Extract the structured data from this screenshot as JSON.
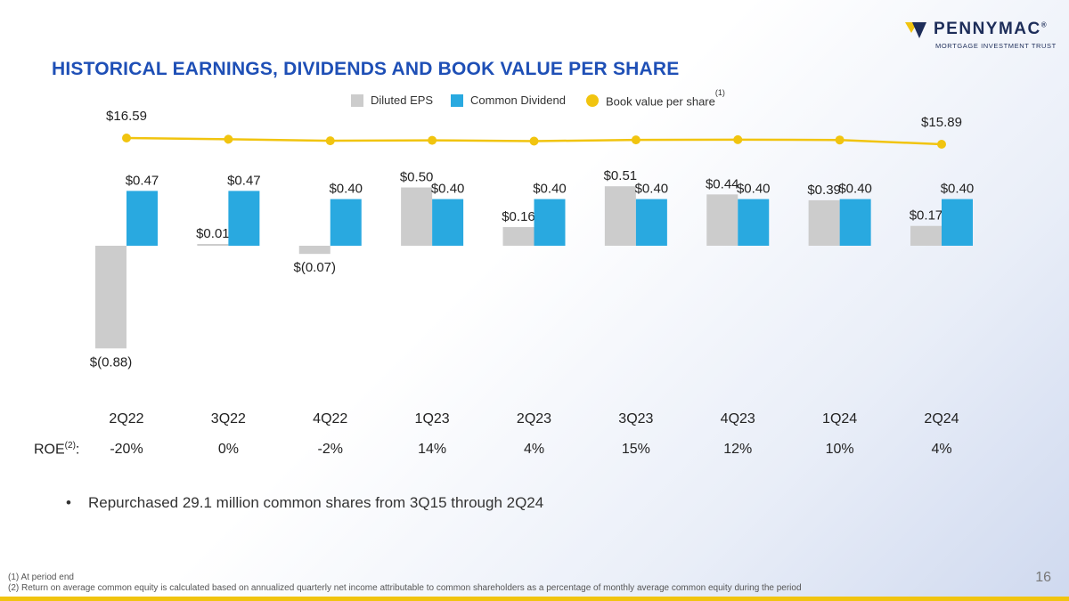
{
  "logo": {
    "name": "PENNYMAC",
    "mark_suffix": "®",
    "subtitle": "MORTGAGE INVESTMENT TRUST",
    "mark_colors": [
      "#f1c40f",
      "#1d2d59"
    ]
  },
  "title": "HISTORICAL EARNINGS, DIVIDENDS AND BOOK VALUE PER SHARE",
  "legend": {
    "items": [
      {
        "label": "Diluted EPS",
        "color": "#cccccc",
        "shape": "square"
      },
      {
        "label": "Common Dividend",
        "color": "#29a9e0",
        "shape": "square"
      },
      {
        "label": "Book value per share",
        "color": "#f1c40f",
        "shape": "circle",
        "sup": "(1)"
      }
    ]
  },
  "chart_data": {
    "type": "bar",
    "categories": [
      "2Q22",
      "3Q22",
      "4Q22",
      "1Q23",
      "2Q23",
      "3Q23",
      "4Q23",
      "1Q24",
      "2Q24"
    ],
    "series": [
      {
        "name": "Diluted EPS",
        "color": "#cccccc",
        "values": [
          -0.88,
          0.01,
          -0.07,
          0.5,
          0.16,
          0.51,
          0.44,
          0.39,
          0.17
        ],
        "labels": [
          "$(0.88)",
          "$0.01",
          "$(0.07)",
          "$0.50",
          "$0.16",
          "$0.51",
          "$0.44",
          "$0.39",
          "$0.17"
        ]
      },
      {
        "name": "Common Dividend",
        "color": "#29a9e0",
        "values": [
          0.47,
          0.47,
          0.4,
          0.4,
          0.4,
          0.4,
          0.4,
          0.4,
          0.4
        ],
        "labels": [
          "$0.47",
          "$0.47",
          "$0.40",
          "$0.40",
          "$0.40",
          "$0.40",
          "$0.40",
          "$0.40",
          "$0.40"
        ]
      },
      {
        "name": "Book value per share",
        "type": "line",
        "color": "#f1c40f",
        "values": [
          16.59,
          16.45,
          16.28,
          16.33,
          16.24,
          16.38,
          16.4,
          16.37,
          15.89
        ],
        "labels": [
          "$16.59",
          "",
          "",
          "",
          "",
          "",
          "",
          "",
          "$15.89"
        ]
      }
    ],
    "ylim": [
      -0.88,
      0.51
    ],
    "grid": false,
    "legend": "top-center"
  },
  "roe": {
    "label": "ROE",
    "sup": "(2)",
    "suffix": ":",
    "values": [
      "-20%",
      "0%",
      "-2%",
      "14%",
      "4%",
      "15%",
      "12%",
      "10%",
      "4%"
    ]
  },
  "bullet": {
    "marker": "•",
    "text": "Repurchased 29.1 million common shares from 3Q15 through 2Q24"
  },
  "footnotes": [
    "(1) At period end",
    "(2) Return on average common equity is calculated based on annualized quarterly net income attributable to common shareholders as a percentage of monthly average common equity during the period"
  ],
  "page_number": "16"
}
